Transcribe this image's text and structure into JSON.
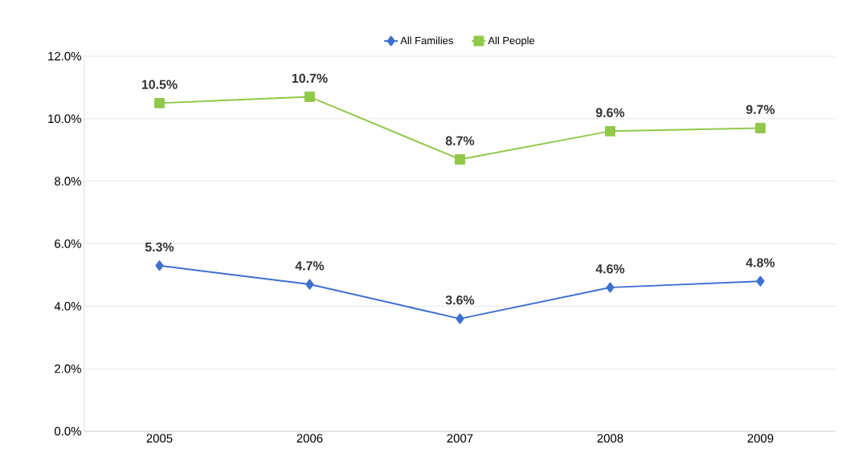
{
  "chart_data": {
    "type": "line",
    "categories": [
      "2005",
      "2006",
      "2007",
      "2008",
      "2009"
    ],
    "series": [
      {
        "name": "All Families",
        "color": "#3f6fcf",
        "marker": "diamond",
        "values": [
          5.3,
          4.7,
          3.6,
          4.6,
          4.8
        ],
        "value_labels": [
          "5.3%",
          "4.7%",
          "3.6%",
          "4.6%",
          "4.8%"
        ]
      },
      {
        "name": "All People",
        "color": "#92c84a",
        "marker": "square",
        "values": [
          10.5,
          10.7,
          8.7,
          9.6,
          9.7
        ],
        "value_labels": [
          "10.5%",
          "10.7%",
          "8.7%",
          "9.6%",
          "9.7%"
        ]
      }
    ],
    "ylim": [
      0,
      12
    ],
    "yticks": [
      {
        "value": 0,
        "label": "0.0%"
      },
      {
        "value": 2,
        "label": "2.0%"
      },
      {
        "value": 4,
        "label": "4.0%"
      },
      {
        "value": 6,
        "label": "6.0%"
      },
      {
        "value": 8,
        "label": "8.0%"
      },
      {
        "value": 10,
        "label": "10.0%"
      },
      {
        "value": 12,
        "label": "12.0%"
      }
    ],
    "grid": "y",
    "legend": "top",
    "line_style": "solid"
  }
}
